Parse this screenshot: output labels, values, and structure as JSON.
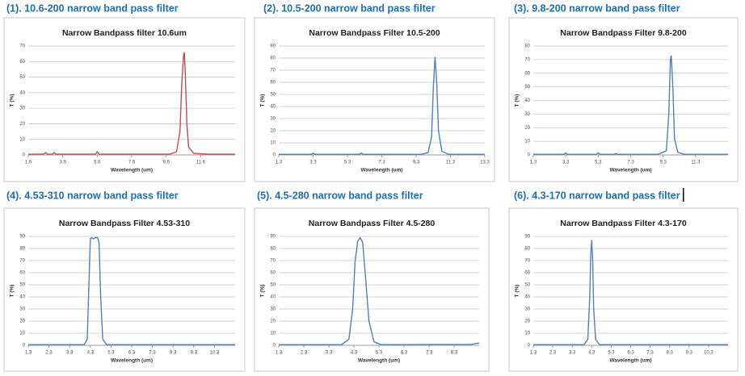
{
  "chart_data": [
    {
      "type": "line",
      "heading": "(1). 10.6-200 narrow band pass filter",
      "title": "Narrow Bandpass filter 10.6um",
      "x_label": "Wavelength (um)",
      "y_label": "T (%)",
      "color": "#c0504d",
      "grid": true,
      "xlim": [
        1.6,
        13.6
      ],
      "xticks": [
        1.6,
        3.6,
        5.6,
        7.6,
        9.6,
        11.6
      ],
      "ylim": [
        0,
        70
      ],
      "yticks": [
        0,
        10,
        20,
        30,
        40,
        50,
        60,
        70
      ],
      "x": [
        1.6,
        2.5,
        2.6,
        2.7,
        3.0,
        3.1,
        3.2,
        4.5,
        5.5,
        5.6,
        5.7,
        6.5,
        8.0,
        9.8,
        10.2,
        10.4,
        10.5,
        10.6,
        10.65,
        10.7,
        10.8,
        10.9,
        11.2,
        12.0,
        13.6
      ],
      "values": [
        0.5,
        0.5,
        1.5,
        0.5,
        0.5,
        1.5,
        0.5,
        0.5,
        0.5,
        2,
        0.5,
        0.5,
        0.5,
        0.5,
        2,
        15,
        45,
        63,
        66,
        55,
        20,
        5,
        1,
        0.5,
        0.5
      ]
    },
    {
      "type": "line",
      "heading": "(2). 10.5-200 narrow band pass filter",
      "title": "Narrow Bandpass Filter 10.5-200",
      "x_label": "Wavelength (um)",
      "y_label": "T (%)",
      "color": "#4f81bd",
      "grid": true,
      "xlim": [
        1.3,
        13.3
      ],
      "xticks": [
        1.3,
        3.3,
        5.3,
        7.3,
        9.3,
        11.3,
        13.3
      ],
      "ylim": [
        0,
        90
      ],
      "yticks": [
        0,
        10,
        20,
        30,
        40,
        50,
        60,
        70,
        80,
        90
      ],
      "x": [
        1.3,
        3.2,
        3.3,
        3.4,
        6.0,
        6.1,
        6.2,
        9.6,
        10.0,
        10.2,
        10.3,
        10.4,
        10.5,
        10.6,
        10.8,
        11.2,
        13.3
      ],
      "values": [
        0.5,
        0.5,
        1.5,
        0.5,
        0.5,
        1.5,
        0.5,
        0.5,
        2,
        15,
        55,
        81,
        60,
        20,
        3,
        0.5,
        0.5
      ]
    },
    {
      "type": "line",
      "heading": "(3). 9.8-200 narrow band pass filter",
      "title": "Narrow Bandpass Filter 9.8-200",
      "x_label": "Wavelength (um)",
      "y_label": "T (%)",
      "color": "#4f81bd",
      "grid": true,
      "xlim": [
        1.3,
        13.3
      ],
      "xticks": [
        1.3,
        3.3,
        5.3,
        7.3,
        9.3,
        11.3
      ],
      "ylim": [
        0,
        80
      ],
      "yticks": [
        0,
        10,
        20,
        30,
        40,
        50,
        60,
        70,
        80
      ],
      "x": [
        1.3,
        3.2,
        3.3,
        3.4,
        5.2,
        5.3,
        5.4,
        6.3,
        6.4,
        6.5,
        9.0,
        9.5,
        9.65,
        9.75,
        9.8,
        9.9,
        10.0,
        10.2,
        10.6,
        13.3
      ],
      "values": [
        0.5,
        0.5,
        1.5,
        0.5,
        0.5,
        1.5,
        0.5,
        0.5,
        1,
        0.5,
        0.5,
        3,
        30,
        70,
        73,
        50,
        12,
        2,
        0.5,
        0.5
      ]
    },
    {
      "type": "line",
      "heading": "(4). 4.53-310 narrow band pass filter",
      "title": "Narrow Bandpass Filter 4.53-310",
      "x_label": "Wavelength (um)",
      "y_label": "T (%)",
      "color": "#4f81bd",
      "grid": true,
      "xlim": [
        1.3,
        11.3
      ],
      "xticks": [
        1.3,
        2.3,
        3.3,
        4.3,
        5.3,
        6.3,
        7.3,
        8.3,
        9.3,
        10.3
      ],
      "ylim": [
        0,
        90
      ],
      "yticks": [
        0,
        10,
        20,
        30,
        40,
        50,
        60,
        70,
        80,
        90
      ],
      "x": [
        1.3,
        4.0,
        4.15,
        4.25,
        4.3,
        4.35,
        4.45,
        4.55,
        4.65,
        4.72,
        4.8,
        4.9,
        5.1,
        11.3
      ],
      "values": [
        0.5,
        0.5,
        5,
        60,
        88,
        89,
        88,
        89,
        89,
        85,
        40,
        5,
        0.5,
        0.5
      ]
    },
    {
      "type": "line",
      "heading": "(5). 4.5-280 narrow band pass filter",
      "title": "Narrow Bandpass Filter 4.5-280",
      "x_label": "Wavelength (um)",
      "y_label": "T (%)",
      "color": "#4f81bd",
      "grid": true,
      "xlim": [
        1.3,
        9.3
      ],
      "xticks": [
        1.3,
        2.3,
        3.3,
        4.3,
        5.3,
        6.3,
        7.3,
        8.3
      ],
      "ylim": [
        0,
        90
      ],
      "yticks": [
        0,
        10,
        20,
        30,
        40,
        50,
        60,
        70,
        80,
        90
      ],
      "x": [
        1.3,
        3.8,
        4.1,
        4.25,
        4.35,
        4.45,
        4.55,
        4.65,
        4.75,
        4.9,
        5.1,
        5.4,
        9.0,
        9.3
      ],
      "values": [
        0.5,
        0.5,
        5,
        30,
        70,
        86,
        89,
        85,
        60,
        20,
        3,
        0.5,
        0.8,
        2
      ]
    },
    {
      "type": "line",
      "heading": "(6). 4.3-170 narrow band pass filter",
      "title": "Narrow Bandpass Filter 4.3-170",
      "x_label": "Wavelength (um)",
      "y_label": "T (%)",
      "color": "#4f81bd",
      "grid": true,
      "xlim": [
        1.3,
        11.3
      ],
      "xticks": [
        1.3,
        2.3,
        3.3,
        4.3,
        5.3,
        6.3,
        7.3,
        8.3,
        9.3,
        10.3
      ],
      "ylim": [
        0,
        90
      ],
      "yticks": [
        0,
        10,
        20,
        30,
        40,
        50,
        60,
        70,
        80,
        90
      ],
      "x": [
        1.3,
        3.9,
        4.1,
        4.2,
        4.25,
        4.3,
        4.35,
        4.4,
        4.5,
        4.7,
        10.3,
        11.3
      ],
      "values": [
        0.5,
        0.5,
        5,
        40,
        75,
        87,
        70,
        30,
        5,
        0.5,
        0.5,
        0.5
      ]
    }
  ]
}
